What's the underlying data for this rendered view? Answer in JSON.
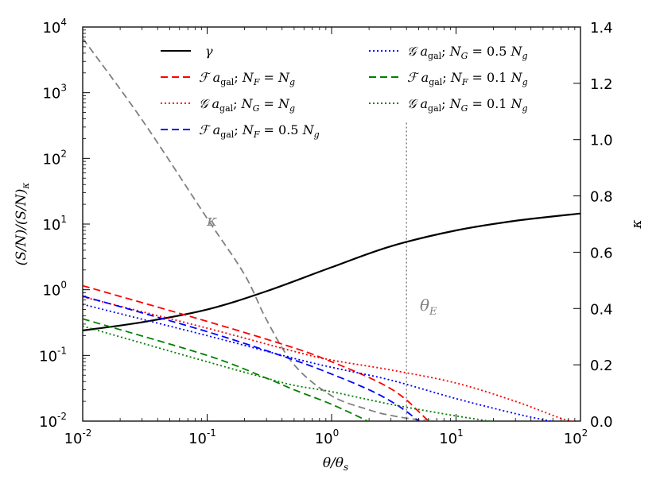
{
  "chart_data": {
    "type": "line",
    "xlabel": "θ/θ_s",
    "ylabel_left": "(S/N)/(S/N)_κ",
    "ylabel_right": "κ",
    "xscale": "log",
    "yscale_left": "log",
    "xlim": [
      0.01,
      100
    ],
    "ylim_left": [
      0.01,
      10000
    ],
    "ylim_right": [
      0.0,
      1.4
    ],
    "x_ticks": [
      {
        "value": 0.01,
        "base": "10",
        "exp": "-2"
      },
      {
        "value": 0.1,
        "base": "10",
        "exp": "-1"
      },
      {
        "value": 1,
        "base": "10",
        "exp": "0"
      },
      {
        "value": 10,
        "base": "10",
        "exp": "1"
      },
      {
        "value": 100,
        "base": "10",
        "exp": "2"
      }
    ],
    "y_ticks_left": [
      {
        "value": 0.01,
        "base": "10",
        "exp": "-2"
      },
      {
        "value": 0.1,
        "base": "10",
        "exp": "-1"
      },
      {
        "value": 1,
        "base": "10",
        "exp": "0"
      },
      {
        "value": 10,
        "base": "10",
        "exp": "1"
      },
      {
        "value": 100,
        "base": "10",
        "exp": "2"
      },
      {
        "value": 1000,
        "base": "10",
        "exp": "3"
      },
      {
        "value": 10000,
        "base": "10",
        "exp": "4"
      }
    ],
    "y_ticks_right": [
      "0.0",
      "0.2",
      "0.4",
      "0.6",
      "0.8",
      "1.0",
      "1.2",
      "1.4"
    ],
    "legend_position": "top",
    "series": [
      {
        "name": "γ",
        "axis": "left",
        "color": "#000000",
        "style": "solid",
        "x": [
          0.01,
          0.03,
          0.1,
          0.3,
          1,
          3,
          10,
          30,
          100
        ],
        "y": [
          0.24,
          0.32,
          0.5,
          0.95,
          2.2,
          4.6,
          8.0,
          11.2,
          14.5
        ]
      },
      {
        "name": "κ",
        "axis": "right",
        "color": "#808080",
        "style": "dashed",
        "x": [
          0.01,
          0.03,
          0.1,
          0.2,
          0.3,
          0.5,
          1,
          2,
          3,
          5,
          8
        ],
        "y": [
          1.36,
          1.07,
          0.72,
          0.52,
          0.36,
          0.2,
          0.09,
          0.04,
          0.02,
          0.005,
          0.0
        ]
      },
      {
        "name": "F a_gal; N_F = N_g",
        "axis": "left",
        "color": "#ff0000",
        "style": "dashed",
        "x": [
          0.01,
          0.1,
          0.5,
          1,
          2,
          3,
          4,
          5,
          6
        ],
        "y": [
          1.15,
          0.33,
          0.13,
          0.08,
          0.046,
          0.031,
          0.021,
          0.014,
          0.01
        ]
      },
      {
        "name": "G a_gal; N_G = N_g",
        "axis": "left",
        "color": "#ff0000",
        "style": "dotted",
        "x": [
          0.01,
          0.1,
          0.5,
          1,
          3,
          10,
          30,
          70,
          100
        ],
        "y": [
          0.78,
          0.26,
          0.115,
          0.085,
          0.06,
          0.038,
          0.02,
          0.011,
          0.0095
        ]
      },
      {
        "name": "F a_gal; N_F = 0.5 N_g",
        "axis": "left",
        "color": "#0000ff",
        "style": "dashed",
        "x": [
          0.01,
          0.1,
          0.5,
          1,
          2,
          3,
          4,
          5
        ],
        "y": [
          0.8,
          0.23,
          0.085,
          0.052,
          0.03,
          0.02,
          0.014,
          0.01
        ]
      },
      {
        "name": "G a_gal; N_G = 0.5 N_g",
        "axis": "left",
        "color": "#0000ff",
        "style": "dotted",
        "x": [
          0.01,
          0.1,
          0.5,
          1,
          3,
          10,
          30,
          60
        ],
        "y": [
          0.6,
          0.2,
          0.09,
          0.066,
          0.042,
          0.022,
          0.013,
          0.0098
        ]
      },
      {
        "name": "F a_gal; N_F = 0.1 N_g",
        "axis": "left",
        "color": "#008000",
        "style": "dashed",
        "x": [
          0.01,
          0.1,
          0.3,
          0.5,
          1,
          2
        ],
        "y": [
          0.36,
          0.1,
          0.045,
          0.03,
          0.018,
          0.0098
        ]
      },
      {
        "name": "G a_gal; N_G = 0.1 N_g",
        "axis": "left",
        "color": "#008000",
        "style": "dotted",
        "x": [
          0.01,
          0.1,
          0.3,
          0.5,
          1,
          3,
          10,
          20
        ],
        "y": [
          0.28,
          0.08,
          0.045,
          0.035,
          0.028,
          0.018,
          0.012,
          0.0098
        ]
      }
    ],
    "annotations": [
      {
        "text": "κ",
        "near": "grey dashed κ curve",
        "x": 0.22,
        "y": 11
      },
      {
        "text": "θ_E",
        "near": "vertical dotted line",
        "x": 4.8,
        "y": 0.55
      }
    ],
    "vline": {
      "x": 4.0,
      "style": "dotted",
      "color": "#808080",
      "y_top_right_axis": 1.06
    }
  }
}
